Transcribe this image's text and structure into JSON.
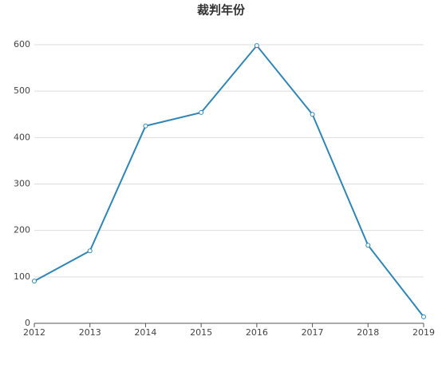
{
  "chart_data": {
    "type": "line",
    "title": "裁判年份",
    "x": [
      2012,
      2013,
      2014,
      2015,
      2016,
      2017,
      2018,
      2019
    ],
    "values": [
      91,
      156,
      425,
      454,
      598,
      450,
      168,
      14
    ],
    "color": "#2f86b6",
    "xlim": [
      2012,
      2019
    ],
    "xticks": [
      2012,
      2013,
      2014,
      2015,
      2016,
      2017,
      2018,
      2019
    ],
    "ylim": [
      0,
      600
    ],
    "yticks": [
      0,
      100,
      200,
      300,
      400,
      500,
      600
    ],
    "grid": true
  }
}
